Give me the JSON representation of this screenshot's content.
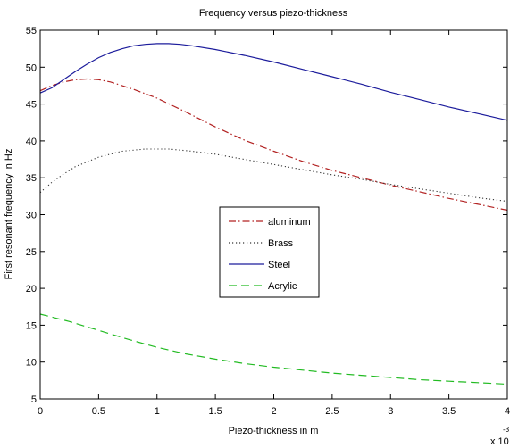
{
  "chart_data": {
    "type": "line",
    "title": "Frequency versus piezo-thickness",
    "xlabel": "Piezo-thickness in m",
    "ylabel": "First resonant frequency in Hz",
    "x_multiplier_text": "x 10",
    "x_multiplier_exponent": "-3",
    "xlim": [
      0,
      4
    ],
    "ylim": [
      5,
      55
    ],
    "x_ticks": [
      "0",
      "0.5",
      "1",
      "1.5",
      "2",
      "2.5",
      "3",
      "3.5",
      "4"
    ],
    "y_ticks": [
      "5",
      "10",
      "15",
      "20",
      "25",
      "30",
      "35",
      "40",
      "45",
      "50",
      "55"
    ],
    "x_tick_values": [
      0,
      0.5,
      1,
      1.5,
      2,
      2.5,
      3,
      3.5,
      4
    ],
    "y_tick_values": [
      5,
      10,
      15,
      20,
      25,
      30,
      35,
      40,
      45,
      50,
      55
    ],
    "grid": false,
    "legend_position": "center-left",
    "series": [
      {
        "name": "aluminum",
        "color": "#b22222",
        "style": "dash-dot",
        "x": [
          0,
          0.1,
          0.2,
          0.3,
          0.4,
          0.5,
          0.6,
          0.8,
          1.0,
          1.25,
          1.5,
          1.75,
          2.0,
          2.25,
          2.5,
          2.75,
          3.0,
          3.25,
          3.5,
          3.75,
          4.0
        ],
        "y": [
          46.8,
          47.5,
          48.0,
          48.3,
          48.4,
          48.3,
          48.0,
          47.0,
          45.8,
          43.9,
          41.9,
          40.1,
          38.6,
          37.2,
          36.0,
          35.0,
          34.0,
          33.1,
          32.2,
          31.4,
          30.6
        ]
      },
      {
        "name": "Brass",
        "color": "#333333",
        "style": "dotted",
        "x": [
          0,
          0.1,
          0.2,
          0.3,
          0.5,
          0.7,
          0.9,
          1.0,
          1.1,
          1.3,
          1.5,
          1.75,
          2.0,
          2.25,
          2.5,
          2.75,
          3.0,
          3.25,
          3.5,
          3.75,
          4.0
        ],
        "y": [
          33.0,
          34.4,
          35.5,
          36.5,
          37.8,
          38.6,
          38.9,
          38.9,
          38.9,
          38.6,
          38.2,
          37.5,
          36.8,
          36.1,
          35.4,
          34.8,
          34.1,
          33.5,
          32.9,
          32.3,
          31.8
        ]
      },
      {
        "name": "Steel",
        "color": "#1c1c9c",
        "style": "solid",
        "x": [
          0,
          0.1,
          0.2,
          0.3,
          0.4,
          0.5,
          0.6,
          0.7,
          0.8,
          0.9,
          1.0,
          1.1,
          1.2,
          1.3,
          1.5,
          1.75,
          2.0,
          2.25,
          2.5,
          2.75,
          3.0,
          3.25,
          3.5,
          3.75,
          4.0
        ],
        "y": [
          46.5,
          47.2,
          48.3,
          49.4,
          50.4,
          51.3,
          52.0,
          52.5,
          52.9,
          53.1,
          53.2,
          53.2,
          53.1,
          52.9,
          52.4,
          51.6,
          50.7,
          49.7,
          48.7,
          47.7,
          46.6,
          45.6,
          44.6,
          43.7,
          42.8
        ]
      },
      {
        "name": "Acrylic",
        "color": "#22bb22",
        "style": "dashed",
        "x": [
          0,
          0.25,
          0.5,
          0.75,
          1.0,
          1.25,
          1.5,
          1.75,
          2.0,
          2.25,
          2.5,
          2.75,
          3.0,
          3.25,
          3.5,
          3.75,
          4.0
        ],
        "y": [
          16.5,
          15.5,
          14.3,
          13.1,
          12.0,
          11.1,
          10.4,
          9.8,
          9.3,
          8.9,
          8.5,
          8.2,
          7.9,
          7.6,
          7.4,
          7.2,
          7.0
        ]
      }
    ]
  }
}
